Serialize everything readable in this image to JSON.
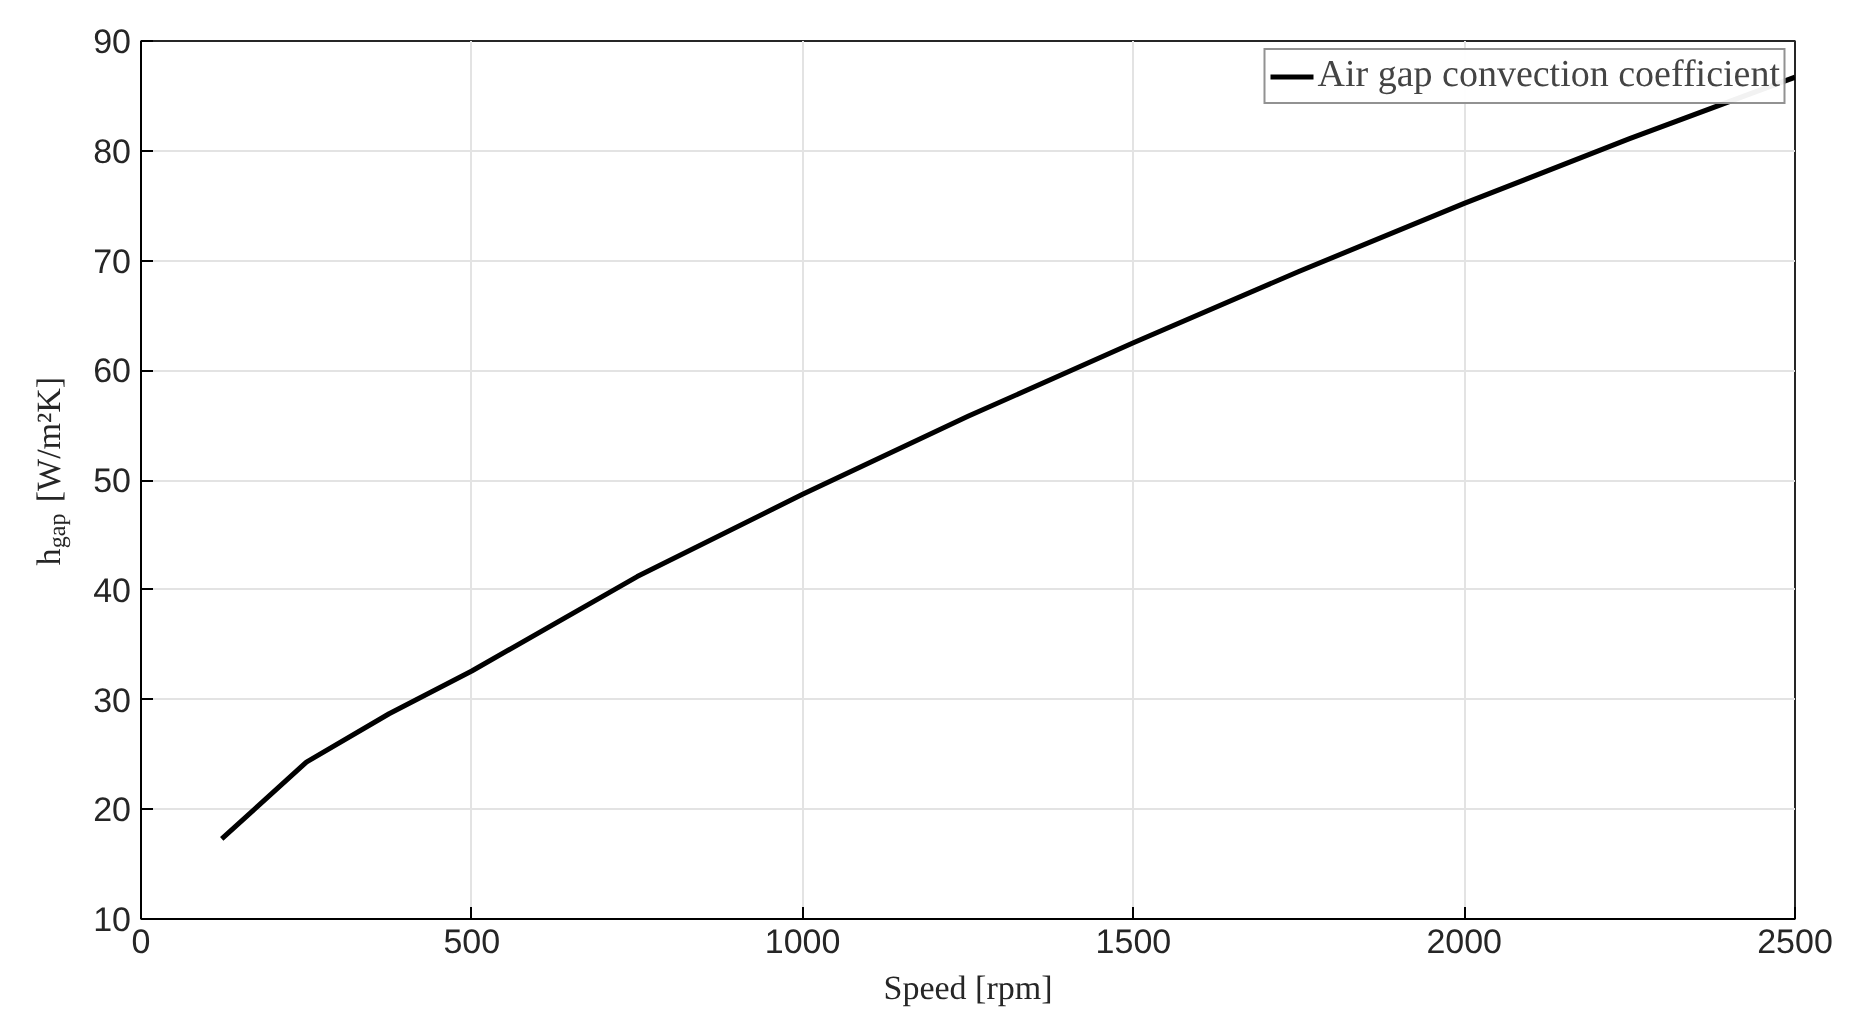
{
  "chart_data": {
    "type": "line",
    "xlabel": "Speed [rpm]",
    "ylabel": "h$_{gap}$ [W/m²K]",
    "x": [
      122,
      250,
      375,
      500,
      750,
      1000,
      1250,
      1500,
      1750,
      2000,
      2250,
      2500
    ],
    "series": [
      {
        "name": "Air gap convection coefficient",
        "color": "#000000",
        "values": [
          17.3,
          24.3,
          28.7,
          32.6,
          41.2,
          48.7,
          55.8,
          62.5,
          69.0,
          75.2,
          81.1,
          86.7
        ]
      }
    ],
    "xlim": [
      0,
      2500
    ],
    "xticks": [
      0,
      500,
      1000,
      1500,
      2000,
      2500
    ],
    "ylim": [
      10,
      90
    ],
    "yticks": [
      10,
      20,
      30,
      40,
      50,
      60,
      70,
      80,
      90
    ],
    "grid": true,
    "legend": "top right",
    "line_style": "solid"
  }
}
